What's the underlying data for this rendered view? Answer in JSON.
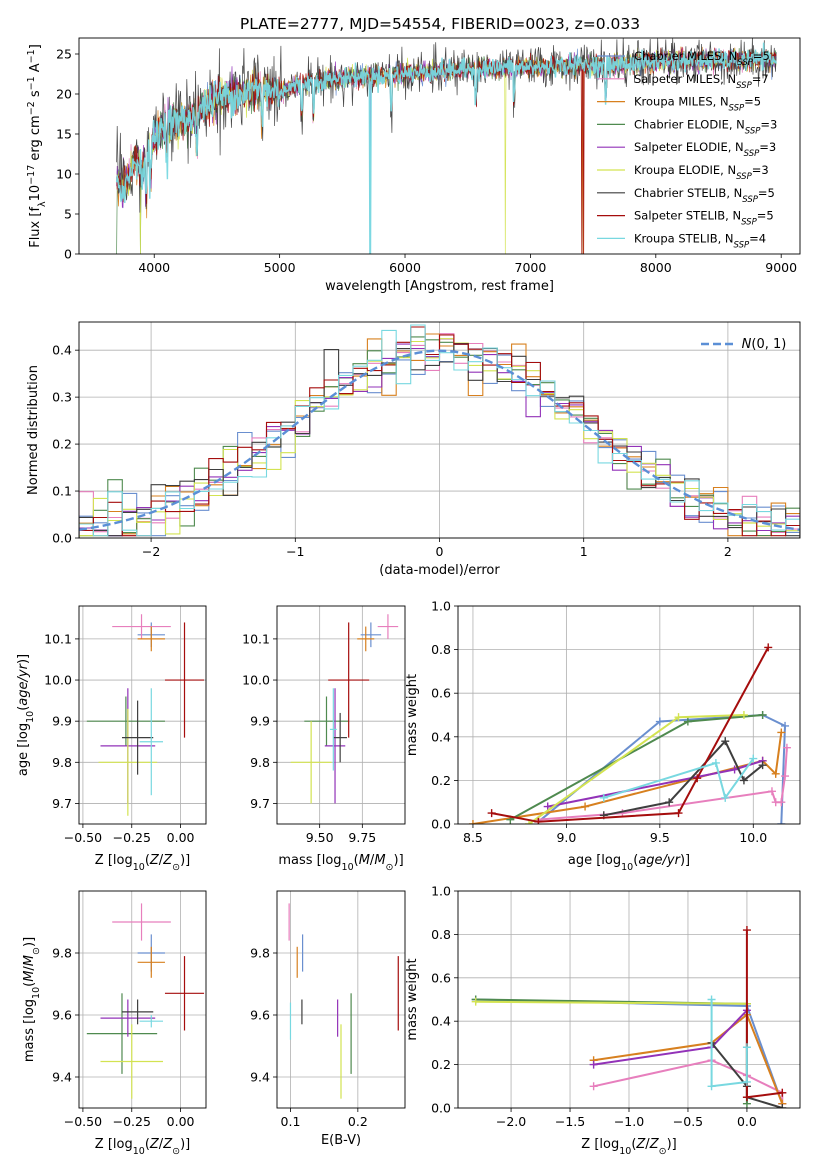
{
  "title": "PLATE=2777, MJD=54554, FIBERID=0023, z=0.033",
  "models": [
    {
      "name": "Chabrier MILES, N$_{SSP}$=5",
      "label": "Chabrier MILES, N",
      "sub": "SSP",
      "tail": "=5",
      "color": "#6a8fcf"
    },
    {
      "name": "Salpeter MILES, N$_{SSP}$=7",
      "label": "Salpeter MILES, N",
      "sub": "SSP",
      "tail": "=7",
      "color": "#e77fbd"
    },
    {
      "name": "Kroupa MILES, N$_{SSP}$=5",
      "label": "Kroupa MILES, N",
      "sub": "SSP",
      "tail": "=5",
      "color": "#d7801f"
    },
    {
      "name": "Chabrier ELODIE, N$_{SSP}$=3",
      "label": "Chabrier ELODIE, N",
      "sub": "SSP",
      "tail": "=3",
      "color": "#4f8a4f"
    },
    {
      "name": "Salpeter ELODIE, N$_{SSP}$=3",
      "label": "Salpeter ELODIE, N",
      "sub": "SSP",
      "tail": "=3",
      "color": "#9232b8"
    },
    {
      "name": "Kroupa ELODIE, N$_{SSP}$=3",
      "label": "Kroupa ELODIE, N",
      "sub": "SSP",
      "tail": "=3",
      "color": "#d3e351"
    },
    {
      "name": "Chabrier STELIB, N$_{SSP}$=5",
      "label": "Chabrier STELIB, N",
      "sub": "SSP",
      "tail": "=5",
      "color": "#3e3e3e"
    },
    {
      "name": "Salpeter STELIB, N$_{SSP}$=5",
      "label": "Salpeter STELIB, N",
      "sub": "SSP",
      "tail": "=5",
      "color": "#a50d0d"
    },
    {
      "name": "Kroupa STELIB, N$_{SSP}$=4",
      "label": "Kroupa STELIB, N",
      "sub": "SSP",
      "tail": "=4",
      "color": "#78d8e0"
    }
  ],
  "chart_data": [
    {
      "type": "line",
      "panel": "spectrum",
      "xlabel": "wavelength [Angstrom, rest frame]",
      "ylabel_parts": [
        "Flux [f",
        "λ",
        "10",
        "−17",
        " erg cm",
        "−2",
        " s",
        "−1",
        " A",
        "−1",
        "]"
      ],
      "xlim": [
        3400,
        9150
      ],
      "ylim": [
        0,
        27
      ],
      "xticks": [
        4000,
        5000,
        6000,
        7000,
        8000,
        9000
      ],
      "yticks": [
        0,
        5,
        10,
        15,
        20,
        25
      ],
      "grid": false,
      "legend": "top-right",
      "continuum": {
        "x": [
          3700,
          3750,
          3800,
          3850,
          3900,
          4000,
          4100,
          4200,
          4300,
          4400,
          4500,
          4600,
          4700,
          4800,
          4900,
          5000,
          5200,
          5400,
          5600,
          5800,
          6000,
          6200,
          6400,
          6600,
          6800,
          7000,
          7200,
          7400,
          7600,
          7800,
          8000,
          8200,
          8400,
          8600,
          8800,
          8950
        ],
        "y": [
          9.5,
          8.0,
          9.5,
          12.0,
          10.5,
          14.5,
          16.5,
          16.5,
          17.0,
          18.5,
          19.5,
          19.8,
          20.0,
          20.5,
          20.5,
          20.3,
          21.5,
          21.8,
          22.2,
          22.2,
          22.5,
          22.8,
          23.0,
          23.2,
          23.3,
          23.3,
          23.5,
          23.7,
          23.5,
          23.8,
          24.0,
          24.2,
          24.2,
          24.2,
          24.3,
          24.2
        ]
      },
      "dropouts": [
        {
          "model": "Chabrier ELODIE, N$_{SSP}$=3",
          "x": [
            3700,
            3890
          ]
        },
        {
          "model": "Kroupa ELODIE, N$_{SSP}$=3",
          "x": [
            3890,
            6800
          ]
        },
        {
          "model": "Kroupa MILES, N$_{SSP}$=5",
          "x": [
            7410,
            7420
          ]
        },
        {
          "model": "Chabrier MILES, N$_{SSP}$=5",
          "x": [
            5720,
            7420
          ]
        },
        {
          "model": "Kroupa STELIB, N$_{SSP}$=4",
          "x": [
            5720,
            5725
          ]
        },
        {
          "model": "Salpeter STELIB, N$_{SSP}$=5",
          "x": [
            7410,
            7425
          ]
        }
      ]
    },
    {
      "type": "histogram",
      "panel": "residuals",
      "xlabel": "(data-model)/error",
      "ylabel": "Normed distribution",
      "xlim": [
        -2.5,
        2.5
      ],
      "ylim": [
        0,
        0.46
      ],
      "xticks": [
        -2,
        -1,
        0,
        1,
        2
      ],
      "yticks": [
        0.0,
        0.1,
        0.2,
        0.3,
        0.4
      ],
      "grid": true,
      "bin_width": 0.1,
      "reference_curve": {
        "label": "$\\mathcal{N}(0, 1)$",
        "mean": 0,
        "sigma": 1,
        "style": "dashed",
        "color": "#5b8fd6"
      },
      "series_envelope": "normal, mean 0, sigma 1, bin-to-bin scatter about 0.04"
    },
    {
      "type": "errorbar",
      "panel": "age-vs-Z",
      "xlabel": "Z [log10(Z/Z⊙)]",
      "ylabel": "age [log10(age/yr)]",
      "xlim": [
        -0.52,
        0.13
      ],
      "ylim": [
        9.65,
        10.18
      ],
      "xticks": [
        -0.5,
        -0.25,
        0.0
      ],
      "yticks": [
        9.7,
        9.8,
        9.9,
        10.0,
        10.1
      ],
      "points": [
        {
          "model": "Chabrier MILES, N$_{SSP}$=5",
          "x": -0.15,
          "xerr": 0.07,
          "y": 10.11,
          "yerr": 0.03
        },
        {
          "model": "Salpeter MILES, N$_{SSP}$=7",
          "x": -0.2,
          "xerr": 0.15,
          "y": 10.13,
          "yerr": 0.03
        },
        {
          "model": "Kroupa MILES, N$_{SSP}$=5",
          "x": -0.15,
          "xerr": 0.07,
          "y": 10.1,
          "yerr": 0.03
        },
        {
          "model": "Chabrier ELODIE, N$_{SSP}$=3",
          "x": -0.28,
          "xerr": 0.2,
          "y": 9.9,
          "yerr": 0.06
        },
        {
          "model": "Salpeter ELODIE, N$_{SSP}$=3",
          "x": -0.27,
          "xerr": 0.14,
          "y": 9.84,
          "yerr": 0.14
        },
        {
          "model": "Kroupa ELODIE, N$_{SSP}$=3",
          "x": -0.27,
          "xerr": 0.15,
          "y": 9.8,
          "yerr": 0.13
        },
        {
          "model": "Chabrier STELIB, N$_{SSP}$=5",
          "x": -0.22,
          "xerr": 0.08,
          "y": 9.86,
          "yerr": 0.09
        },
        {
          "model": "Salpeter STELIB, N$_{SSP}$=5",
          "x": 0.02,
          "xerr": 0.1,
          "y": 10.0,
          "yerr": 0.14
        },
        {
          "model": "Kroupa STELIB, N$_{SSP}$=4",
          "x": -0.15,
          "xerr": 0.06,
          "y": 9.85,
          "yerr": 0.13
        }
      ]
    },
    {
      "type": "errorbar",
      "panel": "age-vs-mass",
      "xlabel": "mass [log10(M/M⊙)]",
      "ylabel": "",
      "xlim": [
        9.25,
        10.0
      ],
      "ylim": [
        9.65,
        10.18
      ],
      "xticks": [
        9.5,
        9.75
      ],
      "yticks": [
        9.7,
        9.8,
        9.9,
        10.0,
        10.1
      ],
      "points": [
        {
          "model": "Chabrier MILES, N$_{SSP}$=5",
          "x": 9.8,
          "xerr": 0.06,
          "y": 10.11,
          "yerr": 0.03
        },
        {
          "model": "Salpeter MILES, N$_{SSP}$=7",
          "x": 9.9,
          "xerr": 0.06,
          "y": 10.13,
          "yerr": 0.03
        },
        {
          "model": "Kroupa MILES, N$_{SSP}$=5",
          "x": 9.77,
          "xerr": 0.05,
          "y": 10.1,
          "yerr": 0.03
        },
        {
          "model": "Chabrier ELODIE, N$_{SSP}$=3",
          "x": 9.54,
          "xerr": 0.13,
          "y": 9.9,
          "yerr": 0.06
        },
        {
          "model": "Salpeter ELODIE, N$_{SSP}$=3",
          "x": 9.59,
          "xerr": 0.06,
          "y": 9.84,
          "yerr": 0.14
        },
        {
          "model": "Kroupa ELODIE, N$_{SSP}$=3",
          "x": 9.45,
          "xerr": 0.12,
          "y": 9.8,
          "yerr": 0.1
        },
        {
          "model": "Chabrier STELIB, N$_{SSP}$=5",
          "x": 9.62,
          "xerr": 0.04,
          "y": 9.86,
          "yerr": 0.06
        },
        {
          "model": "Salpeter STELIB, N$_{SSP}$=5",
          "x": 9.67,
          "xerr": 0.12,
          "y": 10.0,
          "yerr": 0.14
        },
        {
          "model": "Kroupa STELIB, N$_{SSP}$=4",
          "x": 9.58,
          "xerr": 0.02,
          "y": 9.88,
          "yerr": 0.1
        }
      ]
    },
    {
      "type": "line",
      "panel": "mass-weight-vs-age",
      "xlabel": "age [log10(age/yr)]",
      "ylabel": "mass weight",
      "xlim": [
        8.42,
        10.25
      ],
      "ylim": [
        0,
        1.0
      ],
      "xticks": [
        8.5,
        9.0,
        9.5,
        10.0
      ],
      "yticks": [
        0.0,
        0.2,
        0.4,
        0.6,
        0.8,
        1.0
      ],
      "grid": true,
      "series": [
        {
          "model": "Chabrier MILES, N$_{SSP}$=5",
          "x": [
            8.85,
            9.5,
            10.05,
            10.17,
            10.15
          ],
          "y": [
            0.01,
            0.47,
            0.5,
            0.45,
            0.0
          ]
        },
        {
          "model": "Salpeter MILES, N$_{SSP}$=7",
          "x": [
            8.85,
            9.3,
            10.1,
            10.12,
            10.15,
            10.17,
            10.18
          ],
          "y": [
            0.02,
            0.05,
            0.15,
            0.1,
            0.1,
            0.22,
            0.35
          ]
        },
        {
          "model": "Kroupa MILES, N$_{SSP}$=5",
          "x": [
            8.5,
            9.1,
            10.05,
            10.12,
            10.15
          ],
          "y": [
            0.0,
            0.08,
            0.29,
            0.23,
            0.42
          ]
        },
        {
          "model": "Chabrier ELODIE, N$_{SSP}$=3",
          "x": [
            8.7,
            9.65,
            10.05
          ],
          "y": [
            0.02,
            0.47,
            0.5
          ]
        },
        {
          "model": "Salpeter ELODIE, N$_{SSP}$=3",
          "x": [
            8.9,
            9.9,
            10.05
          ],
          "y": [
            0.08,
            0.25,
            0.29
          ]
        },
        {
          "model": "Kroupa ELODIE, N$_{SSP}$=3",
          "x": [
            8.8,
            9.6,
            9.95
          ],
          "y": [
            0.0,
            0.49,
            0.5
          ]
        },
        {
          "model": "Chabrier STELIB, N$_{SSP}$=5",
          "x": [
            9.2,
            9.55,
            9.85,
            9.95,
            10.05
          ],
          "y": [
            0.04,
            0.1,
            0.38,
            0.2,
            0.27
          ]
        },
        {
          "model": "Salpeter STELIB, N$_{SSP}$=5",
          "x": [
            8.6,
            8.85,
            9.6,
            9.7,
            10.08
          ],
          "y": [
            0.05,
            0.01,
            0.05,
            0.21,
            0.81
          ]
        },
        {
          "model": "Kroupa STELIB, N$_{SSP}$=4",
          "x": [
            9.2,
            9.8,
            9.85,
            10.0
          ],
          "y": [
            0.12,
            0.28,
            0.12,
            0.3
          ]
        }
      ]
    },
    {
      "type": "errorbar",
      "panel": "mass-vs-Z",
      "xlabel": "Z [log10(Z/Z⊙)]",
      "ylabel": "mass [log10(M/M⊙)]",
      "xlim": [
        -0.52,
        0.13
      ],
      "ylim": [
        9.3,
        10.0
      ],
      "xticks": [
        -0.5,
        -0.25,
        0.0
      ],
      "yticks": [
        9.4,
        9.6,
        9.8
      ],
      "points": [
        {
          "model": "Chabrier MILES, N$_{SSP}$=5",
          "x": -0.15,
          "xerr": 0.07,
          "y": 9.8,
          "yerr": 0.06
        },
        {
          "model": "Salpeter MILES, N$_{SSP}$=7",
          "x": -0.2,
          "xerr": 0.15,
          "y": 9.9,
          "yerr": 0.06
        },
        {
          "model": "Kroupa MILES, N$_{SSP}$=5",
          "x": -0.15,
          "xerr": 0.07,
          "y": 9.77,
          "yerr": 0.05
        },
        {
          "model": "Chabrier ELODIE, N$_{SSP}$=3",
          "x": -0.3,
          "xerr": 0.18,
          "y": 9.54,
          "yerr": 0.13
        },
        {
          "model": "Salpeter ELODIE, N$_{SSP}$=3",
          "x": -0.27,
          "xerr": 0.14,
          "y": 9.59,
          "yerr": 0.06
        },
        {
          "model": "Kroupa ELODIE, N$_{SSP}$=3",
          "x": -0.25,
          "xerr": 0.16,
          "y": 9.45,
          "yerr": 0.12
        },
        {
          "model": "Chabrier STELIB, N$_{SSP}$=5",
          "x": -0.22,
          "xerr": 0.08,
          "y": 9.61,
          "yerr": 0.04
        },
        {
          "model": "Salpeter STELIB, N$_{SSP}$=5",
          "x": 0.02,
          "xerr": 0.1,
          "y": 9.67,
          "yerr": 0.12
        },
        {
          "model": "Kroupa STELIB, N$_{SSP}$=4",
          "x": -0.15,
          "xerr": 0.06,
          "y": 9.58,
          "yerr": 0.02
        }
      ]
    },
    {
      "type": "errorbar",
      "panel": "mass-vs-EBV",
      "xlabel": "E(B-V)",
      "ylabel": "",
      "xlim": [
        0.08,
        0.27
      ],
      "ylim": [
        9.3,
        10.0
      ],
      "xticks": [
        0.1,
        0.2
      ],
      "yticks": [
        9.4,
        9.6,
        9.8
      ],
      "points": [
        {
          "model": "Chabrier MILES, N$_{SSP}$=5",
          "x": 0.118,
          "xerr": 0,
          "y": 9.8,
          "yerr": 0.06
        },
        {
          "model": "Salpeter MILES, N$_{SSP}$=7",
          "x": 0.098,
          "xerr": 0,
          "y": 9.9,
          "yerr": 0.06
        },
        {
          "model": "Kroupa MILES, N$_{SSP}$=5",
          "x": 0.11,
          "xerr": 0,
          "y": 9.77,
          "yerr": 0.05
        },
        {
          "model": "Chabrier ELODIE, N$_{SSP}$=3",
          "x": 0.19,
          "xerr": 0,
          "y": 9.54,
          "yerr": 0.13
        },
        {
          "model": "Salpeter ELODIE, N$_{SSP}$=3",
          "x": 0.17,
          "xerr": 0,
          "y": 9.59,
          "yerr": 0.06
        },
        {
          "model": "Kroupa ELODIE, N$_{SSP}$=3",
          "x": 0.175,
          "xerr": 0,
          "y": 9.45,
          "yerr": 0.12
        },
        {
          "model": "Chabrier STELIB, N$_{SSP}$=5",
          "x": 0.117,
          "xerr": 0,
          "y": 9.61,
          "yerr": 0.04
        },
        {
          "model": "Salpeter STELIB, N$_{SSP}$=5",
          "x": 0.26,
          "xerr": 0,
          "y": 9.67,
          "yerr": 0.12
        },
        {
          "model": "Kroupa STELIB, N$_{SSP}$=4",
          "x": 0.1,
          "xerr": 0,
          "y": 9.58,
          "yerr": 0.06
        }
      ]
    },
    {
      "type": "line",
      "panel": "mass-weight-vs-Z",
      "xlabel": "Z [log10(Z/Z⊙)]",
      "ylabel": "mass weight",
      "xlim": [
        -2.45,
        0.45
      ],
      "ylim": [
        0,
        1.0
      ],
      "xticks": [
        -2.0,
        -1.5,
        -1.0,
        -0.5,
        0.0
      ],
      "yticks": [
        0.0,
        0.2,
        0.4,
        0.6,
        0.8,
        1.0
      ],
      "grid": true,
      "series": [
        {
          "model": "Chabrier MILES, N$_{SSP}$=5",
          "x": [
            -2.3,
            0.0,
            0.3
          ],
          "y": [
            0.5,
            0.47,
            0.02
          ]
        },
        {
          "model": "Salpeter MILES, N$_{SSP}$=7",
          "x": [
            -1.3,
            -0.3,
            0.0,
            0.3,
            0.3
          ],
          "y": [
            0.1,
            0.22,
            0.15,
            0.07,
            0.02
          ]
        },
        {
          "model": "Kroupa MILES, N$_{SSP}$=5",
          "x": [
            -1.3,
            -0.3,
            0.0,
            0.3
          ],
          "y": [
            0.22,
            0.3,
            0.43,
            0.02
          ]
        },
        {
          "model": "Chabrier ELODIE, N$_{SSP}$=3",
          "x": [
            -2.3,
            0.0,
            0.0
          ],
          "y": [
            0.5,
            0.48,
            0.02
          ]
        },
        {
          "model": "Salpeter ELODIE, N$_{SSP}$=3",
          "x": [
            -1.3,
            -0.3,
            0.0
          ],
          "y": [
            0.2,
            0.28,
            0.45
          ]
        },
        {
          "model": "Kroupa ELODIE, N$_{SSP}$=3",
          "x": [
            -2.3,
            0.0
          ],
          "y": [
            0.49,
            0.48
          ]
        },
        {
          "model": "Chabrier STELIB, N$_{SSP}$=5",
          "x": [
            -0.3,
            0.0,
            0.0,
            0.3
          ],
          "y": [
            0.3,
            0.1,
            0.05,
            0.0
          ]
        },
        {
          "model": "Salpeter STELIB, N$_{SSP}$=5",
          "x": [
            0.0,
            0.0,
            0.3
          ],
          "y": [
            0.82,
            0.05,
            0.07
          ]
        },
        {
          "model": "Kroupa STELIB, N$_{SSP}$=4",
          "x": [
            -0.3,
            -0.3,
            0.0,
            0.0
          ],
          "y": [
            0.5,
            0.1,
            0.12,
            0.28
          ]
        }
      ]
    }
  ]
}
